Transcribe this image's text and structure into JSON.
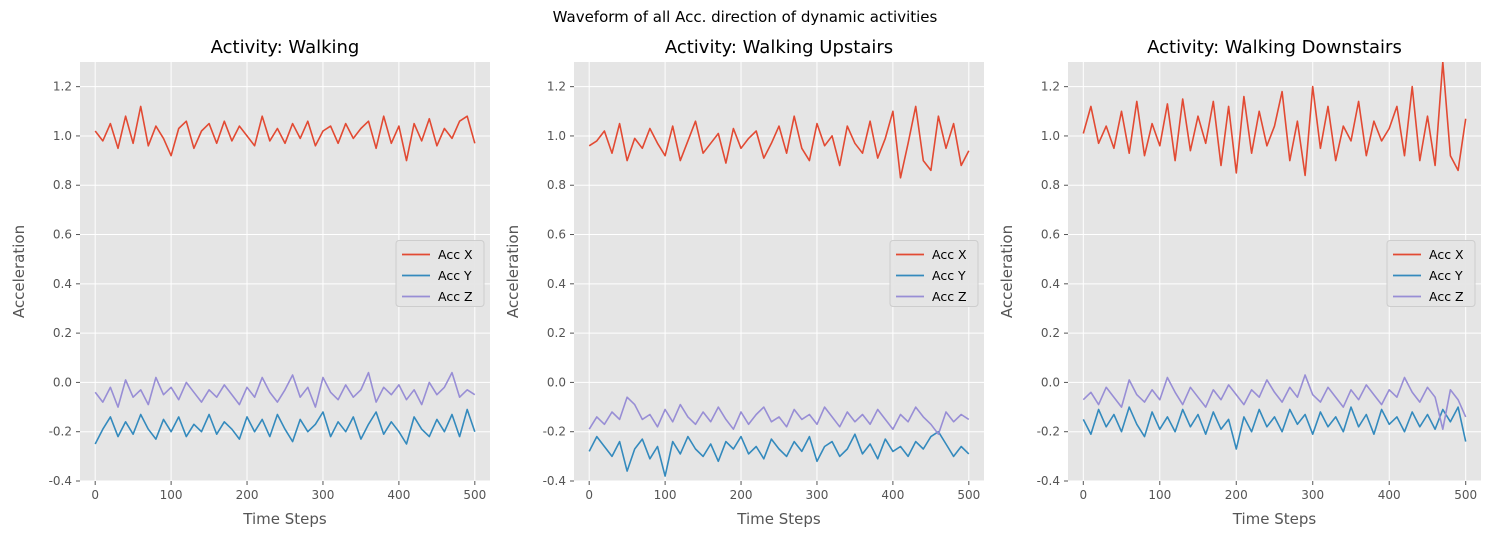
{
  "figure": {
    "suptitle": "Waveform of all Acc. direction of dynamic activities"
  },
  "colors": {
    "acc_x": "#E24A33",
    "acc_y": "#348ABD",
    "acc_z": "#988ED5",
    "plot_bg": "#E5E5E5",
    "grid": "#FFFFFF"
  },
  "chart_data": [
    {
      "type": "line",
      "title": "Activity: Walking",
      "xlabel": "Time Steps",
      "ylabel": "Acceleration",
      "xlim": [
        -20,
        520
      ],
      "ylim": [
        -0.4,
        1.3
      ],
      "xticks": [
        0,
        100,
        200,
        300,
        400,
        500
      ],
      "yticks": [
        -0.4,
        -0.2,
        0.0,
        0.2,
        0.4,
        0.6,
        0.8,
        1.0,
        1.2
      ],
      "legend": "center-right",
      "grid": true,
      "x": [
        0,
        10,
        20,
        30,
        40,
        50,
        60,
        70,
        80,
        90,
        100,
        110,
        120,
        130,
        140,
        150,
        160,
        170,
        180,
        190,
        200,
        210,
        220,
        230,
        240,
        250,
        260,
        270,
        280,
        290,
        300,
        310,
        320,
        330,
        340,
        350,
        360,
        370,
        380,
        390,
        400,
        410,
        420,
        430,
        440,
        450,
        460,
        470,
        480,
        490,
        500
      ],
      "series": [
        {
          "name": "Acc X",
          "values": [
            1.02,
            0.98,
            1.05,
            0.95,
            1.08,
            0.97,
            1.12,
            0.96,
            1.04,
            0.99,
            0.92,
            1.03,
            1.06,
            0.95,
            1.02,
            1.05,
            0.97,
            1.06,
            0.98,
            1.04,
            1.0,
            0.96,
            1.08,
            0.98,
            1.03,
            0.97,
            1.05,
            0.99,
            1.06,
            0.96,
            1.02,
            1.04,
            0.97,
            1.05,
            0.99,
            1.03,
            1.06,
            0.95,
            1.08,
            0.97,
            1.04,
            0.9,
            1.05,
            0.98,
            1.07,
            0.96,
            1.03,
            0.99,
            1.06,
            1.08,
            0.97
          ]
        },
        {
          "name": "Acc Y",
          "values": [
            -0.25,
            -0.19,
            -0.14,
            -0.22,
            -0.16,
            -0.21,
            -0.13,
            -0.19,
            -0.23,
            -0.15,
            -0.2,
            -0.14,
            -0.22,
            -0.17,
            -0.2,
            -0.13,
            -0.21,
            -0.16,
            -0.19,
            -0.23,
            -0.14,
            -0.2,
            -0.15,
            -0.22,
            -0.13,
            -0.19,
            -0.24,
            -0.15,
            -0.2,
            -0.17,
            -0.12,
            -0.22,
            -0.16,
            -0.2,
            -0.14,
            -0.23,
            -0.17,
            -0.12,
            -0.21,
            -0.16,
            -0.2,
            -0.25,
            -0.14,
            -0.19,
            -0.22,
            -0.15,
            -0.2,
            -0.13,
            -0.22,
            -0.11,
            -0.2
          ]
        },
        {
          "name": "Acc Z",
          "values": [
            -0.04,
            -0.08,
            -0.02,
            -0.1,
            0.01,
            -0.06,
            -0.03,
            -0.09,
            0.02,
            -0.05,
            -0.02,
            -0.07,
            0.0,
            -0.04,
            -0.08,
            -0.03,
            -0.06,
            -0.01,
            -0.05,
            -0.09,
            -0.02,
            -0.06,
            0.02,
            -0.04,
            -0.08,
            -0.03,
            0.03,
            -0.06,
            -0.02,
            -0.1,
            0.02,
            -0.04,
            -0.07,
            -0.01,
            -0.06,
            -0.03,
            0.04,
            -0.08,
            -0.02,
            -0.05,
            -0.01,
            -0.07,
            -0.03,
            -0.09,
            0.0,
            -0.05,
            -0.02,
            0.04,
            -0.06,
            -0.03,
            -0.05
          ]
        }
      ]
    },
    {
      "type": "line",
      "title": "Activity: Walking Upstairs",
      "xlabel": "Time Steps",
      "ylabel": "Acceleration",
      "xlim": [
        -20,
        520
      ],
      "ylim": [
        -0.4,
        1.3
      ],
      "xticks": [
        0,
        100,
        200,
        300,
        400,
        500
      ],
      "yticks": [
        -0.4,
        -0.2,
        0.0,
        0.2,
        0.4,
        0.6,
        0.8,
        1.0,
        1.2
      ],
      "legend": "center-right",
      "grid": true,
      "x": [
        0,
        10,
        20,
        30,
        40,
        50,
        60,
        70,
        80,
        90,
        100,
        110,
        120,
        130,
        140,
        150,
        160,
        170,
        180,
        190,
        200,
        210,
        220,
        230,
        240,
        250,
        260,
        270,
        280,
        290,
        300,
        310,
        320,
        330,
        340,
        350,
        360,
        370,
        380,
        390,
        400,
        410,
        420,
        430,
        440,
        450,
        460,
        470,
        480,
        490,
        500
      ],
      "series": [
        {
          "name": "Acc X",
          "values": [
            0.96,
            0.98,
            1.02,
            0.93,
            1.05,
            0.9,
            0.99,
            0.95,
            1.03,
            0.97,
            0.92,
            1.04,
            0.9,
            0.98,
            1.06,
            0.93,
            0.97,
            1.01,
            0.89,
            1.03,
            0.95,
            0.99,
            1.02,
            0.91,
            0.97,
            1.04,
            0.93,
            1.08,
            0.95,
            0.9,
            1.05,
            0.96,
            1.0,
            0.88,
            1.04,
            0.97,
            0.93,
            1.06,
            0.91,
            0.99,
            1.1,
            0.83,
            0.97,
            1.12,
            0.9,
            0.86,
            1.08,
            0.95,
            1.05,
            0.88,
            0.94
          ]
        },
        {
          "name": "Acc Y",
          "values": [
            -0.28,
            -0.22,
            -0.26,
            -0.3,
            -0.24,
            -0.36,
            -0.27,
            -0.23,
            -0.31,
            -0.26,
            -0.38,
            -0.24,
            -0.29,
            -0.22,
            -0.27,
            -0.3,
            -0.25,
            -0.32,
            -0.24,
            -0.27,
            -0.22,
            -0.29,
            -0.26,
            -0.31,
            -0.23,
            -0.27,
            -0.3,
            -0.24,
            -0.28,
            -0.22,
            -0.32,
            -0.26,
            -0.24,
            -0.3,
            -0.27,
            -0.21,
            -0.29,
            -0.25,
            -0.31,
            -0.23,
            -0.28,
            -0.26,
            -0.3,
            -0.24,
            -0.27,
            -0.22,
            -0.2,
            -0.25,
            -0.3,
            -0.26,
            -0.29
          ]
        },
        {
          "name": "Acc Z",
          "values": [
            -0.19,
            -0.14,
            -0.17,
            -0.12,
            -0.15,
            -0.06,
            -0.09,
            -0.15,
            -0.13,
            -0.18,
            -0.11,
            -0.16,
            -0.09,
            -0.14,
            -0.17,
            -0.12,
            -0.16,
            -0.1,
            -0.15,
            -0.19,
            -0.12,
            -0.17,
            -0.13,
            -0.1,
            -0.16,
            -0.14,
            -0.18,
            -0.11,
            -0.15,
            -0.13,
            -0.17,
            -0.1,
            -0.14,
            -0.18,
            -0.12,
            -0.16,
            -0.13,
            -0.17,
            -0.11,
            -0.15,
            -0.19,
            -0.13,
            -0.16,
            -0.1,
            -0.14,
            -0.17,
            -0.21,
            -0.12,
            -0.16,
            -0.13,
            -0.15
          ]
        }
      ]
    },
    {
      "type": "line",
      "title": "Activity: Walking Downstairs",
      "xlabel": "Time Steps",
      "ylabel": "Acceleration",
      "xlim": [
        -20,
        520
      ],
      "ylim": [
        -0.4,
        1.3
      ],
      "xticks": [
        0,
        100,
        200,
        300,
        400,
        500
      ],
      "yticks": [
        -0.4,
        -0.2,
        0.0,
        0.2,
        0.4,
        0.6,
        0.8,
        1.0,
        1.2
      ],
      "legend": "center-right",
      "grid": true,
      "x": [
        0,
        10,
        20,
        30,
        40,
        50,
        60,
        70,
        80,
        90,
        100,
        110,
        120,
        130,
        140,
        150,
        160,
        170,
        180,
        190,
        200,
        210,
        220,
        230,
        240,
        250,
        260,
        270,
        280,
        290,
        300,
        310,
        320,
        330,
        340,
        350,
        360,
        370,
        380,
        390,
        400,
        410,
        420,
        430,
        440,
        450,
        460,
        470,
        480,
        490,
        500
      ],
      "series": [
        {
          "name": "Acc X",
          "values": [
            1.01,
            1.12,
            0.97,
            1.04,
            0.95,
            1.1,
            0.93,
            1.14,
            0.92,
            1.05,
            0.96,
            1.13,
            0.9,
            1.15,
            0.94,
            1.08,
            0.97,
            1.14,
            0.88,
            1.12,
            0.85,
            1.16,
            0.93,
            1.1,
            0.96,
            1.04,
            1.18,
            0.9,
            1.06,
            0.84,
            1.2,
            0.95,
            1.12,
            0.9,
            1.04,
            0.98,
            1.14,
            0.92,
            1.06,
            0.98,
            1.03,
            1.12,
            0.92,
            1.2,
            0.9,
            1.08,
            0.88,
            1.3,
            0.92,
            0.86,
            1.07
          ]
        },
        {
          "name": "Acc Y",
          "values": [
            -0.15,
            -0.21,
            -0.11,
            -0.18,
            -0.13,
            -0.2,
            -0.1,
            -0.17,
            -0.22,
            -0.12,
            -0.19,
            -0.14,
            -0.2,
            -0.11,
            -0.18,
            -0.13,
            -0.21,
            -0.12,
            -0.19,
            -0.15,
            -0.27,
            -0.14,
            -0.2,
            -0.11,
            -0.18,
            -0.14,
            -0.2,
            -0.11,
            -0.17,
            -0.13,
            -0.21,
            -0.12,
            -0.18,
            -0.14,
            -0.2,
            -0.1,
            -0.18,
            -0.13,
            -0.21,
            -0.11,
            -0.17,
            -0.14,
            -0.2,
            -0.12,
            -0.18,
            -0.13,
            -0.19,
            -0.11,
            -0.16,
            -0.1,
            -0.24
          ]
        },
        {
          "name": "Acc Z",
          "values": [
            -0.07,
            -0.04,
            -0.09,
            -0.02,
            -0.06,
            -0.1,
            0.01,
            -0.05,
            -0.08,
            -0.03,
            -0.07,
            0.02,
            -0.04,
            -0.09,
            -0.02,
            -0.06,
            -0.1,
            -0.03,
            -0.07,
            -0.01,
            -0.05,
            -0.09,
            -0.03,
            -0.06,
            0.01,
            -0.04,
            -0.08,
            -0.02,
            -0.06,
            0.03,
            -0.05,
            -0.08,
            -0.02,
            -0.06,
            -0.1,
            -0.03,
            -0.07,
            -0.01,
            -0.05,
            -0.09,
            -0.03,
            -0.06,
            0.02,
            -0.04,
            -0.08,
            -0.02,
            -0.06,
            -0.19,
            -0.03,
            -0.07,
            -0.14
          ]
        }
      ]
    }
  ]
}
